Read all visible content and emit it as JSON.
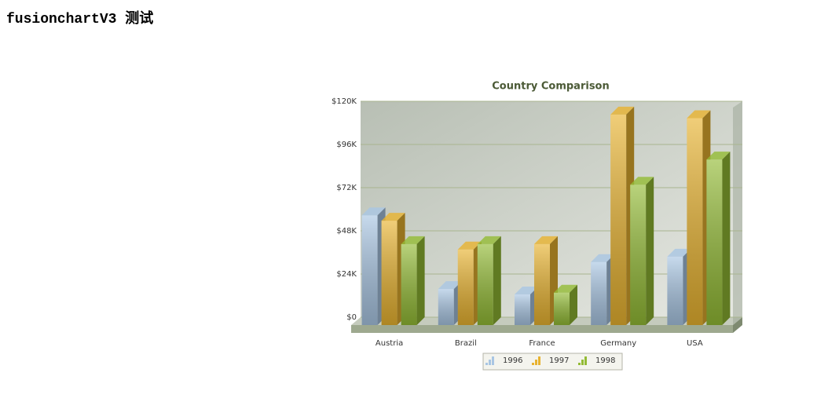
{
  "page": {
    "heading": "fusionchartV3 测试"
  },
  "chart_data": {
    "type": "bar",
    "title": "Country Comparison",
    "categories": [
      "Austria",
      "Brazil",
      "France",
      "Germany",
      "USA"
    ],
    "series": [
      {
        "name": "1996",
        "color": "#a9c6e3",
        "values": [
          61000,
          20000,
          17000,
          35000,
          38000
        ]
      },
      {
        "name": "1997",
        "color": "#e8b330",
        "values": [
          58000,
          42000,
          45000,
          117000,
          115000
        ]
      },
      {
        "name": "1998",
        "color": "#93bb35",
        "values": [
          45000,
          45000,
          18000,
          78000,
          92000
        ]
      }
    ],
    "ylim": [
      0,
      120000
    ],
    "yticks": [
      {
        "value": 0,
        "label": "$0"
      },
      {
        "value": 24000,
        "label": "$24K"
      },
      {
        "value": 48000,
        "label": "$48K"
      },
      {
        "value": 72000,
        "label": "$72K"
      },
      {
        "value": 96000,
        "label": "$96K"
      },
      {
        "value": 120000,
        "label": "$120K"
      }
    ],
    "grid": true,
    "legend": "bottom"
  }
}
